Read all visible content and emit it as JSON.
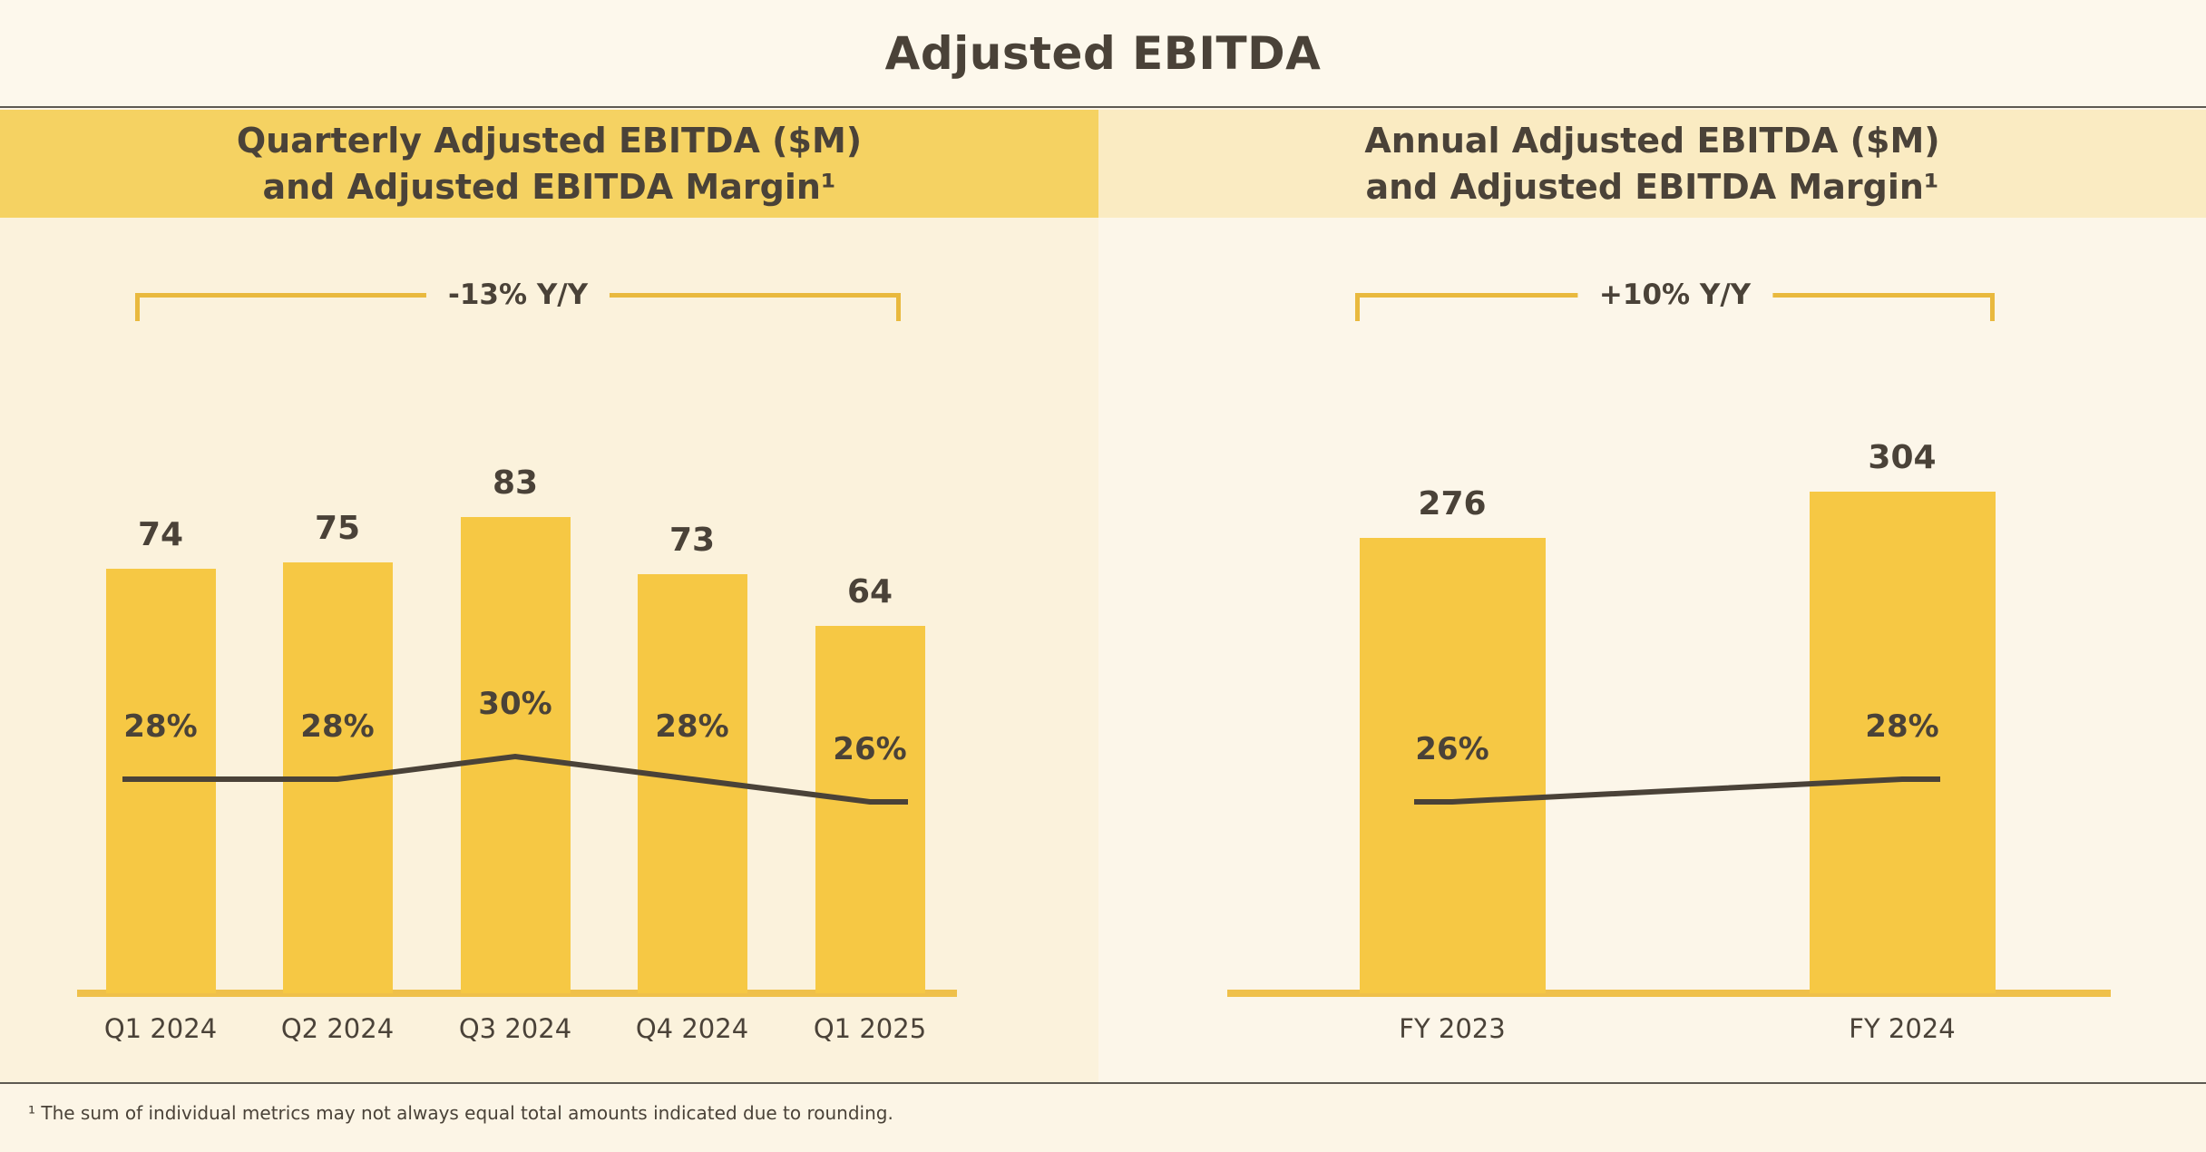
{
  "page": {
    "title": "Adjusted EBITDA",
    "footnote": "¹ The sum of individual metrics may not always equal total amounts indicated due to rounding."
  },
  "colors": {
    "text": "#4A4238",
    "bar": "#F6C844",
    "line": "#4A4238",
    "axis": "#EFC04A",
    "bracket": "#E9B93E",
    "left_header_bg": "#F5D262",
    "right_header_bg": "#FAEBC2",
    "left_body_bg": "#FBF2DC",
    "right_body_bg": "#FCF6E9",
    "divider": "#5E5A52"
  },
  "chart_data": [
    {
      "type": "bar",
      "title": "Quarterly Adjusted EBITDA ($M) and Adjusted EBITDA Margin¹",
      "title_line1": "Quarterly Adjusted EBITDA ($M)",
      "title_line2": "and Adjusted EBITDA Margin¹",
      "annotation": "-13% Y/Y",
      "categories": [
        "Q1 2024",
        "Q2 2024",
        "Q3 2024",
        "Q4 2024",
        "Q1 2025"
      ],
      "series": [
        {
          "name": "Adjusted EBITDA ($M)",
          "type": "bar",
          "values": [
            74,
            75,
            83,
            73,
            64
          ]
        },
        {
          "name": "Adjusted EBITDA Margin",
          "type": "line",
          "unit": "%",
          "values": [
            28,
            28,
            30,
            28,
            26
          ]
        }
      ],
      "ylim": [
        0,
        135
      ],
      "grid": false,
      "legend": "none"
    },
    {
      "type": "bar",
      "title": "Annual Adjusted EBITDA ($M) and Adjusted EBITDA Margin¹",
      "title_line1": "Annual Adjusted EBITDA ($M)",
      "title_line2": "and Adjusted EBITDA Margin¹",
      "annotation": "+10% Y/Y",
      "categories": [
        "FY 2023",
        "FY 2024"
      ],
      "series": [
        {
          "name": "Adjusted EBITDA ($M)",
          "type": "bar",
          "values": [
            276,
            304
          ]
        },
        {
          "name": "Adjusted EBITDA Margin",
          "type": "line",
          "unit": "%",
          "values": [
            26,
            28
          ]
        }
      ],
      "ylim": [
        0,
        470
      ],
      "grid": false,
      "legend": "none"
    }
  ]
}
